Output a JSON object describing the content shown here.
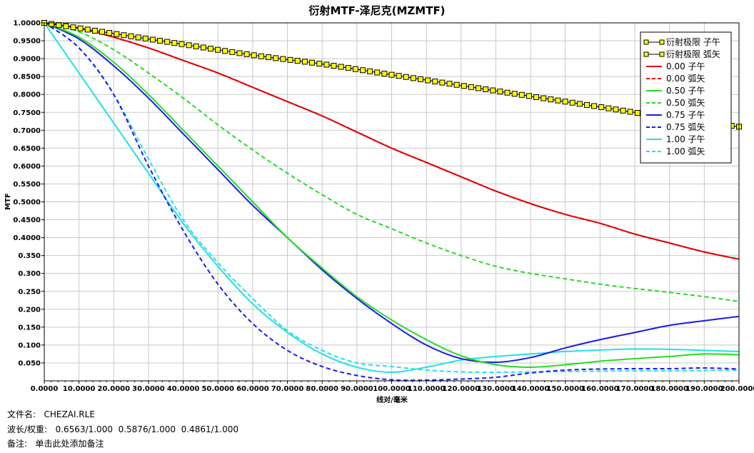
{
  "chart_data": {
    "type": "line",
    "title": "衍射MTF-泽尼克(MZMTF)",
    "xlabel": "线对/毫米",
    "ylabel": "MTF",
    "xlim": [
      0,
      200
    ],
    "ylim": [
      0,
      1
    ],
    "x_ticks": [
      "0.0000",
      "10.0000",
      "20.0000",
      "30.0000",
      "40.0000",
      "50.0000",
      "60.0000",
      "70.0000",
      "80.0000",
      "90.0000",
      "100.0000",
      "110.0000",
      "120.0000",
      "130.0000",
      "140.0000",
      "150.0000",
      "160.0000",
      "170.0000",
      "180.0000",
      "190.0000",
      "200.0000"
    ],
    "y_ticks": [
      "0.050",
      "0.100",
      "0.150",
      "0.200",
      "0.250",
      "0.300",
      "0.350",
      "0.4000",
      "0.4500",
      "0.5000",
      "0.5500",
      "0.6000",
      "0.6500",
      "0.7000",
      "0.7500",
      "0.8000",
      "0.8500",
      "0.9000",
      "0.9500",
      "1.0000"
    ],
    "legend_position": "top-right",
    "series": [
      {
        "name": "衍射极限 子午",
        "color": "#000000",
        "dash": "solid",
        "marker": "square-yellow",
        "x": [
          0,
          20,
          40,
          60,
          80,
          100,
          120,
          140,
          160,
          180,
          200
        ],
        "y": [
          1.0,
          0.97,
          0.94,
          0.91,
          0.885,
          0.855,
          0.825,
          0.795,
          0.765,
          0.735,
          0.71
        ]
      },
      {
        "name": "衍射极限 弧矢",
        "color": "#000000",
        "dash": "solid",
        "marker": "square-yellow",
        "x": [
          0,
          20,
          40,
          60,
          80,
          100,
          120,
          140,
          160,
          180,
          200
        ],
        "y": [
          1.0,
          0.97,
          0.94,
          0.91,
          0.885,
          0.855,
          0.825,
          0.795,
          0.765,
          0.735,
          0.71
        ]
      },
      {
        "name": "0.00 子午",
        "color": "#e00000",
        "dash": "solid",
        "x": [
          0,
          10,
          20,
          30,
          40,
          50,
          60,
          70,
          80,
          90,
          100,
          110,
          120,
          130,
          140,
          150,
          160,
          170,
          180,
          190,
          200
        ],
        "y": [
          1.0,
          0.985,
          0.96,
          0.93,
          0.895,
          0.86,
          0.82,
          0.78,
          0.74,
          0.695,
          0.65,
          0.61,
          0.57,
          0.53,
          0.495,
          0.465,
          0.44,
          0.41,
          0.385,
          0.36,
          0.34
        ]
      },
      {
        "name": "0.00 弧矢",
        "color": "#e00000",
        "dash": "dashed",
        "x": [
          0,
          10,
          20,
          30,
          40,
          50,
          60,
          70,
          80,
          90,
          100,
          110,
          120,
          130,
          140,
          150,
          160,
          170,
          180,
          190,
          200
        ],
        "y": [
          1.0,
          0.985,
          0.96,
          0.93,
          0.895,
          0.86,
          0.82,
          0.78,
          0.74,
          0.695,
          0.65,
          0.61,
          0.57,
          0.53,
          0.495,
          0.465,
          0.44,
          0.41,
          0.385,
          0.36,
          0.34
        ]
      },
      {
        "name": "0.50 子午",
        "color": "#22dd22",
        "dash": "solid",
        "x": [
          0,
          10,
          20,
          30,
          40,
          50,
          60,
          70,
          80,
          90,
          100,
          110,
          120,
          130,
          140,
          150,
          160,
          170,
          180,
          190,
          200
        ],
        "y": [
          1.0,
          0.96,
          0.89,
          0.8,
          0.7,
          0.6,
          0.5,
          0.4,
          0.315,
          0.235,
          0.17,
          0.115,
          0.07,
          0.045,
          0.038,
          0.045,
          0.055,
          0.062,
          0.068,
          0.075,
          0.073
        ]
      },
      {
        "name": "0.50 弧矢",
        "color": "#22dd22",
        "dash": "dashed",
        "x": [
          0,
          10,
          20,
          30,
          40,
          50,
          60,
          70,
          80,
          90,
          100,
          110,
          120,
          130,
          140,
          150,
          160,
          170,
          180,
          190,
          200
        ],
        "y": [
          1.0,
          0.975,
          0.925,
          0.86,
          0.79,
          0.715,
          0.645,
          0.58,
          0.52,
          0.465,
          0.425,
          0.385,
          0.35,
          0.32,
          0.3,
          0.285,
          0.27,
          0.258,
          0.247,
          0.235,
          0.222
        ]
      },
      {
        "name": "0.75 子午",
        "color": "#1a1aee",
        "dash": "solid",
        "x": [
          0,
          10,
          20,
          30,
          40,
          50,
          60,
          70,
          80,
          90,
          100,
          110,
          120,
          130,
          140,
          150,
          160,
          170,
          180,
          190,
          200
        ],
        "y": [
          1.0,
          0.955,
          0.88,
          0.79,
          0.69,
          0.59,
          0.49,
          0.4,
          0.31,
          0.23,
          0.16,
          0.1,
          0.062,
          0.052,
          0.065,
          0.092,
          0.115,
          0.135,
          0.155,
          0.168,
          0.18
        ]
      },
      {
        "name": "0.75 弧矢",
        "color": "#1a1aee",
        "dash": "dashed",
        "x": [
          0,
          10,
          20,
          30,
          40,
          50,
          60,
          70,
          80,
          90,
          100,
          110,
          120,
          130,
          140,
          150,
          160,
          170,
          180,
          190,
          200
        ],
        "y": [
          1.0,
          0.93,
          0.8,
          0.6,
          0.42,
          0.27,
          0.16,
          0.085,
          0.04,
          0.015,
          0.003,
          0.002,
          0.005,
          0.01,
          0.022,
          0.03,
          0.033,
          0.034,
          0.034,
          0.036,
          0.033
        ]
      },
      {
        "name": "1.00 子午",
        "color": "#22e0e8",
        "dash": "solid",
        "x": [
          0,
          10,
          20,
          30,
          40,
          50,
          60,
          70,
          80,
          90,
          100,
          110,
          120,
          130,
          140,
          150,
          160,
          170,
          180,
          190,
          200
        ],
        "y": [
          1.0,
          0.86,
          0.72,
          0.58,
          0.44,
          0.32,
          0.215,
          0.135,
          0.075,
          0.038,
          0.024,
          0.038,
          0.058,
          0.068,
          0.075,
          0.082,
          0.086,
          0.089,
          0.088,
          0.085,
          0.082
        ]
      },
      {
        "name": "1.00 弧矢",
        "color": "#22e0e8",
        "dash": "dashed",
        "x": [
          0,
          10,
          20,
          30,
          40,
          50,
          60,
          70,
          80,
          90,
          100,
          110,
          120,
          130,
          140,
          150,
          160,
          170,
          180,
          190,
          200
        ],
        "y": [
          1.0,
          0.93,
          0.8,
          0.62,
          0.45,
          0.33,
          0.23,
          0.14,
          0.085,
          0.05,
          0.04,
          0.03,
          0.025,
          0.024,
          0.025,
          0.026,
          0.027,
          0.028,
          0.028,
          0.029,
          0.03
        ]
      }
    ]
  },
  "footer": {
    "filename_label": "文件名:",
    "filename_value": "CHEZAI.RLE",
    "wavelength_label": "波长/权重:",
    "wavelength_value": "0.6563/1.000  0.5876/1.000  0.4861/1.000",
    "note_label": "备注:",
    "note_value": "单击此处添加备注"
  }
}
